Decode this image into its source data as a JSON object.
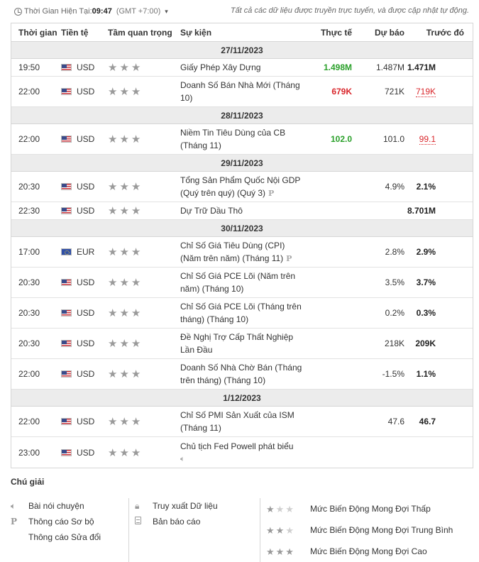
{
  "header": {
    "time_label": "Thời Gian Hiện Tại:",
    "time_value": "09:47",
    "timezone": "(GMT +7:00)",
    "note": "Tất cả các dữ liệu được truyền trực tuyến, và được cập nhật tự động."
  },
  "columns": {
    "time": "Thời gian",
    "currency": "Tiền tệ",
    "importance": "Tầm quan trọng",
    "event": "Sự kiện",
    "actual": "Thực tế",
    "forecast": "Dự báo",
    "previous": "Trước đó"
  },
  "groups": [
    {
      "date": "27/11/2023",
      "rows": [
        {
          "time": "19:50",
          "flag": "us",
          "currency": "USD",
          "stars": "★★★",
          "event": "Giấy Phép Xây Dựng",
          "actual": "1.498M",
          "actual_style": "green",
          "forecast": "1.487M",
          "previous": "1.471M",
          "previous_style": "bold",
          "size": "h1"
        },
        {
          "time": "22:00",
          "flag": "us",
          "currency": "USD",
          "stars": "★★★",
          "event": "Doanh Số Bán Nhà Mới (Tháng 10)",
          "actual": "679K",
          "actual_style": "red",
          "forecast": "721K",
          "previous": "719K",
          "previous_style": "red-ul",
          "size": "h2"
        }
      ]
    },
    {
      "date": "28/11/2023",
      "rows": [
        {
          "time": "22:00",
          "flag": "us",
          "currency": "USD",
          "stars": "★★★",
          "event": "Niềm Tin Tiêu Dùng của CB (Tháng 11)",
          "actual": "102.0",
          "actual_style": "green",
          "forecast": "101.0",
          "previous": "99.1",
          "previous_style": "red-ul",
          "size": "h2"
        }
      ]
    },
    {
      "date": "29/11/2023",
      "rows": [
        {
          "time": "20:30",
          "flag": "us",
          "currency": "USD",
          "stars": "★★★",
          "event": "Tổng Sản Phẩm Quốc Nội GDP (Quý trên quý) (Quý 3)",
          "marker": "P",
          "actual": "",
          "forecast": "4.9%",
          "previous": "2.1%",
          "previous_style": "bold",
          "size": "h2"
        },
        {
          "time": "22:30",
          "flag": "us",
          "currency": "USD",
          "stars": "★★★",
          "event": "Dự Trữ Dầu Thô",
          "actual": "",
          "forecast": "",
          "previous": "8.701M",
          "previous_style": "bold",
          "size": "h1"
        }
      ]
    },
    {
      "date": "30/11/2023",
      "rows": [
        {
          "time": "17:00",
          "flag": "eu",
          "currency": "EUR",
          "stars": "★★★",
          "event": "Chỉ Số Giá Tiêu Dùng (CPI) (Năm trên năm) (Tháng 11)",
          "marker": "P",
          "actual": "",
          "forecast": "2.8%",
          "previous": "2.9%",
          "previous_style": "bold",
          "size": "h2"
        },
        {
          "time": "20:30",
          "flag": "us",
          "currency": "USD",
          "stars": "★★★",
          "event": "Chỉ Số Giá PCE Lõi (Năm trên năm) (Tháng 10)",
          "actual": "",
          "forecast": "3.5%",
          "previous": "3.7%",
          "previous_style": "bold",
          "size": "h2"
        },
        {
          "time": "20:30",
          "flag": "us",
          "currency": "USD",
          "stars": "★★★",
          "event": "Chỉ Số Giá PCE Lõi (Tháng trên tháng) (Tháng 10)",
          "actual": "",
          "forecast": "0.2%",
          "previous": "0.3%",
          "previous_style": "bold",
          "size": "h2"
        },
        {
          "time": "20:30",
          "flag": "us",
          "currency": "USD",
          "stars": "★★★",
          "event": "Đề Nghị Trợ Cấp Thất Nghiệp Lần Đầu",
          "actual": "",
          "forecast": "218K",
          "previous": "209K",
          "previous_style": "bold",
          "size": "h2"
        },
        {
          "time": "22:00",
          "flag": "us",
          "currency": "USD",
          "stars": "★★★",
          "event": "Doanh Số Nhà Chờ Bán (Tháng trên tháng) (Tháng 10)",
          "actual": "",
          "forecast": "-1.5%",
          "previous": "1.1%",
          "previous_style": "bold",
          "size": "h2"
        }
      ]
    },
    {
      "date": "1/12/2023",
      "rows": [
        {
          "time": "22:00",
          "flag": "us",
          "currency": "USD",
          "stars": "★★★",
          "event": "Chỉ Số PMI Sản Xuất của ISM (Tháng 11)",
          "actual": "",
          "forecast": "47.6",
          "previous": "46.7",
          "previous_style": "bold",
          "size": "h2"
        },
        {
          "time": "23:00",
          "flag": "us",
          "currency": "USD",
          "stars": "★★★",
          "event": "Chủ tịch Fed Powell phát biểu",
          "speaker": true,
          "actual": "",
          "forecast": "",
          "previous": "",
          "size": "h3"
        }
      ]
    }
  ],
  "legend": {
    "title": "Chú giải",
    "col1": [
      "Bài nói chuyện",
      "Thông cáo Sơ bộ",
      "Thông cáo Sửa đổi"
    ],
    "col2": [
      "Truy xuất Dữ liệu",
      "Bản báo cáo"
    ],
    "col3": [
      "Mức Biến Động Mong Đợi Thấp",
      "Mức Biến Động Mong Đợi Trung Bình",
      "Mức Biến Động Mong Đợi Cao"
    ],
    "p_marker": "P"
  }
}
